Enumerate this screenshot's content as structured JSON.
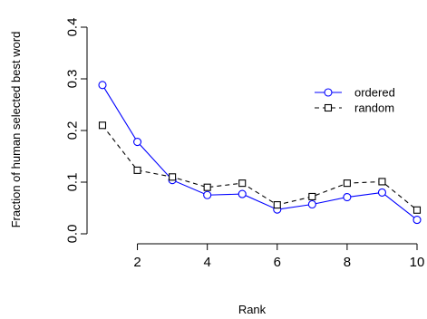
{
  "chart_data": {
    "type": "line",
    "xlabel": "Rank",
    "ylabel": "Fraction of human selected best word",
    "xlim": [
      1,
      10
    ],
    "ylim": [
      0,
      0.4
    ],
    "xticks": [
      2,
      4,
      6,
      8,
      10
    ],
    "yticks": [
      0.0,
      0.1,
      0.2,
      0.3,
      0.4
    ],
    "xtick_labels": [
      "2",
      "4",
      "6",
      "8",
      "10"
    ],
    "ytick_labels": [
      "0.0",
      "0.1",
      "0.2",
      "0.3",
      "0.4"
    ],
    "x": [
      1,
      2,
      3,
      4,
      5,
      6,
      7,
      8,
      9,
      10
    ],
    "grid": false,
    "legend_position": "right",
    "series": [
      {
        "name": "ordered",
        "values": [
          0.288,
          0.178,
          0.104,
          0.075,
          0.077,
          0.047,
          0.057,
          0.071,
          0.08,
          0.027
        ],
        "color": "#0000ff",
        "line_style": "solid",
        "marker": "circle"
      },
      {
        "name": "random",
        "values": [
          0.21,
          0.123,
          0.11,
          0.09,
          0.098,
          0.056,
          0.072,
          0.098,
          0.101,
          0.046
        ],
        "color": "#000000",
        "line_style": "dashed",
        "marker": "square"
      }
    ]
  }
}
